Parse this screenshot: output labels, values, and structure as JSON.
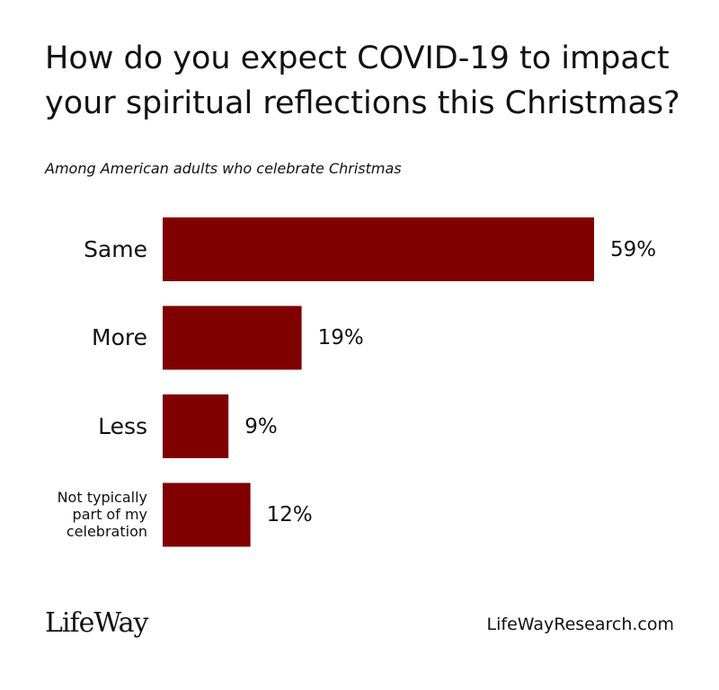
{
  "chart_data": {
    "type": "bar",
    "orientation": "horizontal",
    "title": "How do you expect COVID-19 to impact your spiritual reflections this Christmas?",
    "subtitle": "Among American adults who celebrate Christmas",
    "categories": [
      "Same",
      "More",
      "Less",
      "Not typically part of my celebration"
    ],
    "values": [
      59,
      19,
      9,
      12
    ],
    "value_labels": [
      "59%",
      "19%",
      "9%",
      "12%"
    ],
    "color": "#800000"
  },
  "footer": {
    "logo": "LifeWay",
    "url": "LifeWayResearch.com"
  }
}
